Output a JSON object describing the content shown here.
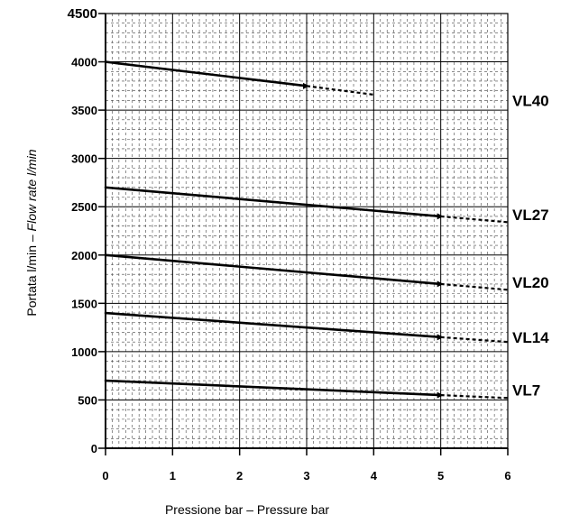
{
  "chart_data": {
    "type": "line",
    "xlabel": "Pressione bar – Pressure bar",
    "ylabel_prefix": "Portata l/min – ",
    "ylabel_italic": "Flow rate l/min",
    "xlim": [
      0,
      6
    ],
    "ylim": [
      0,
      4500
    ],
    "xticks": [
      "0",
      "1",
      "2",
      "3",
      "4",
      "5",
      "6"
    ],
    "yticks": [
      "0",
      "500",
      "1000",
      "1500",
      "2000",
      "2500",
      "3000",
      "3500",
      "4000",
      "4500"
    ],
    "grid": true,
    "series": [
      {
        "name": "VL40",
        "solid": [
          [
            0,
            4000
          ],
          [
            3,
            3750
          ]
        ],
        "dashed": [
          [
            3,
            3750
          ],
          [
            4,
            3660
          ]
        ]
      },
      {
        "name": "VL27",
        "solid": [
          [
            0,
            2700
          ],
          [
            5,
            2400
          ]
        ],
        "dashed": [
          [
            5,
            2400
          ],
          [
            6,
            2340
          ]
        ]
      },
      {
        "name": "VL20",
        "solid": [
          [
            0,
            2000
          ],
          [
            5,
            1700
          ]
        ],
        "dashed": [
          [
            5,
            1700
          ],
          [
            6,
            1640
          ]
        ]
      },
      {
        "name": "VL14",
        "solid": [
          [
            0,
            1400
          ],
          [
            5,
            1150
          ]
        ],
        "dashed": [
          [
            5,
            1150
          ],
          [
            6,
            1100
          ]
        ]
      },
      {
        "name": "VL7",
        "solid": [
          [
            0,
            700
          ],
          [
            5,
            550
          ]
        ],
        "dashed": [
          [
            5,
            550
          ],
          [
            6,
            520
          ]
        ]
      }
    ],
    "series_label_y": [
      3600,
      2420,
      1720,
      1150,
      600
    ]
  }
}
